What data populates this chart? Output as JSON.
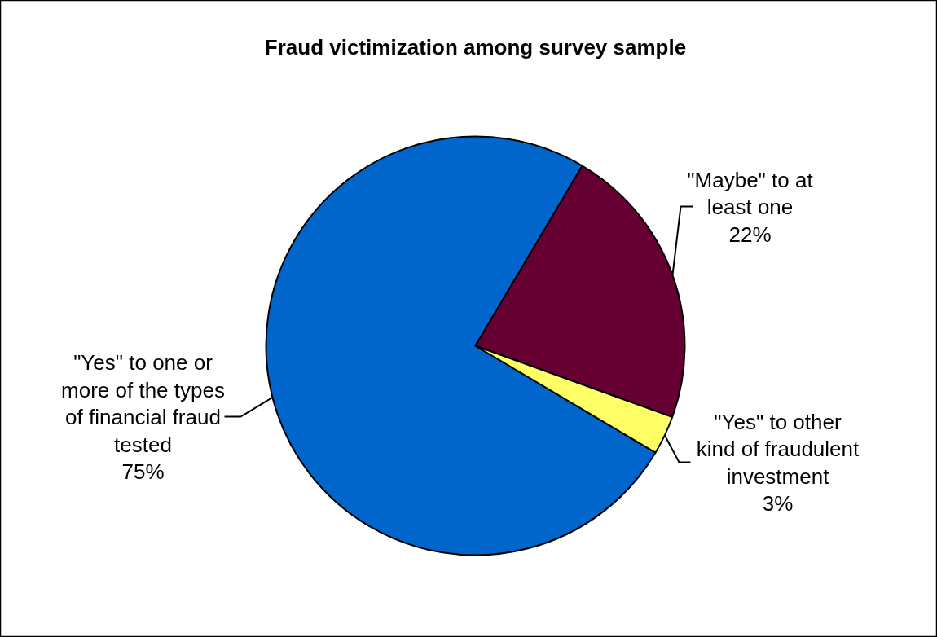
{
  "chart_data": {
    "type": "pie",
    "title": "Fraud victimization among survey sample",
    "categories": [
      "\"Yes\" to one or more of the types of financial fraud tested",
      "\"Maybe\" to at least one",
      "\"Yes\" to other kind of fraudulent investment"
    ],
    "values": [
      75,
      22,
      3
    ],
    "colors": [
      "#0066cc",
      "#660033",
      "#ffff66"
    ],
    "value_labels": [
      "75%",
      "22%",
      "3%"
    ]
  }
}
